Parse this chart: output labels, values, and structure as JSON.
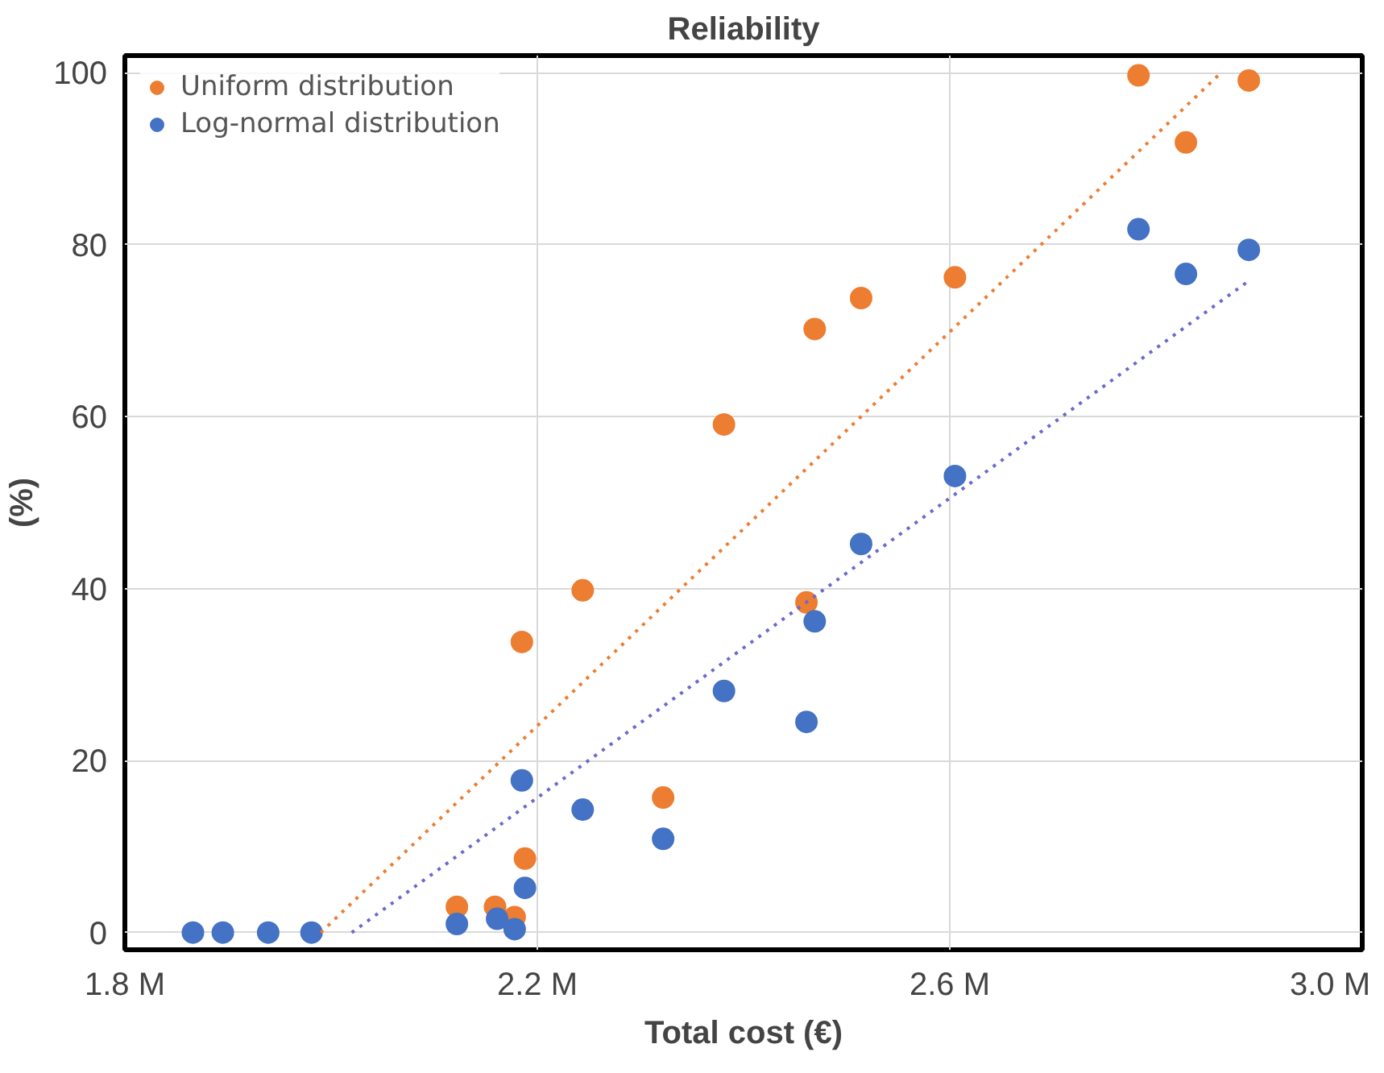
{
  "chart_data": {
    "type": "scatter",
    "title": "Reliability",
    "xlabel": "Total cost (€)",
    "ylabel": "(%)",
    "xlim": [
      1.8,
      3.0
    ],
    "ylim": [
      -2,
      102
    ],
    "xticks": [
      {
        "value": 1.8,
        "label": "1.8 M"
      },
      {
        "value": 2.2,
        "label": "2.2 M"
      },
      {
        "value": 2.6,
        "label": "2.6 M"
      },
      {
        "value": 3.0,
        "label": "3.0 M"
      }
    ],
    "yticks": [
      0,
      20,
      40,
      60,
      80,
      100
    ],
    "grid": true,
    "legend": "top left",
    "series": [
      {
        "name": "Uniform distribution",
        "color": "#ed7d31",
        "marker": "circle",
        "x": [
          2.122,
          2.159,
          2.178,
          2.188,
          2.185,
          2.244,
          2.322,
          2.381,
          2.461,
          2.469,
          2.514,
          2.605,
          2.783,
          2.829,
          2.89
        ],
        "values": [
          3.0,
          3.0,
          1.8,
          8.6,
          33.8,
          39.8,
          15.7,
          59.1,
          38.4,
          70.2,
          73.8,
          76.2,
          99.7,
          91.9,
          99.1
        ]
      },
      {
        "name": "Log-normal distribution",
        "color": "#4472c4",
        "marker": "circle",
        "x": [
          1.866,
          1.895,
          1.939,
          1.981,
          2.122,
          2.161,
          2.178,
          2.188,
          2.185,
          2.244,
          2.322,
          2.381,
          2.461,
          2.469,
          2.514,
          2.605,
          2.783,
          2.829,
          2.89
        ],
        "values": [
          0,
          0,
          0,
          0,
          1.0,
          1.6,
          0.4,
          5.2,
          17.7,
          14.3,
          10.9,
          28.1,
          24.5,
          36.2,
          45.2,
          53.1,
          81.8,
          76.6,
          79.4
        ]
      },
      {
        "type": "line",
        "color": "#ed7d31",
        "line_style": "dotted",
        "marker": "none",
        "x": [
          1.99,
          2.863
        ],
        "values": [
          0,
          100
        ]
      },
      {
        "type": "line",
        "color": "#6a6ad0",
        "line_style": "dotted",
        "marker": "none",
        "x": [
          2.02,
          2.89
        ],
        "values": [
          0,
          75.8
        ]
      }
    ]
  }
}
